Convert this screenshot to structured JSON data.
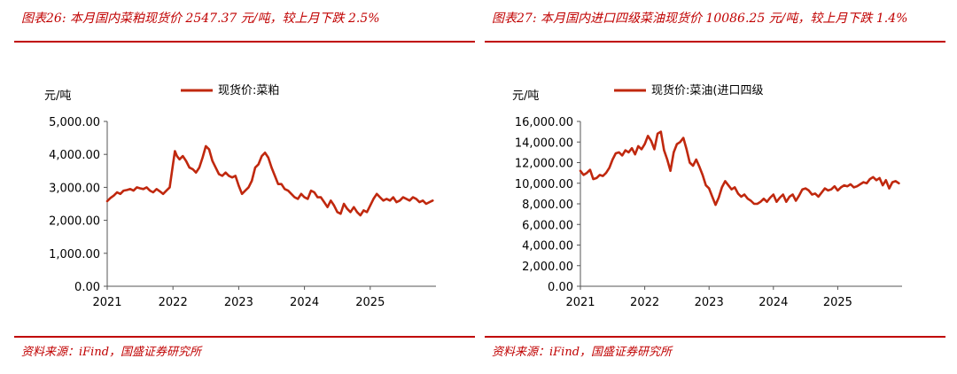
{
  "panels": [
    {
      "title": "图表26:  本月国内菜粕现货价 2547.37 元/吨，较上月下跌 2.5%",
      "source": "资料来源：iFind，国盛证券研究所"
    },
    {
      "title": "图表27:  本月国内进口四级菜油现货价  10086.25  元/吨，较上月下跌 1.4%",
      "source": "资料来源：iFind，国盛证券研究所"
    }
  ],
  "chart_data": [
    {
      "type": "line",
      "title": "",
      "unit_label": "元/吨",
      "legend": "现货价:菜粕",
      "legend_position": "top-center",
      "color": "#c0280e",
      "ylim": [
        0,
        5000
      ],
      "yticks": [
        0,
        1000,
        2000,
        3000,
        4000,
        5000
      ],
      "ytick_labels": [
        "0.00",
        "1,000.00",
        "2,000.00",
        "3,000.00",
        "4,000.00",
        "5,000.00"
      ],
      "xlim": [
        2021.0,
        2026.0
      ],
      "xticks": [
        2021,
        2022,
        2023,
        2024,
        2025
      ],
      "xtick_labels": [
        "2021",
        "2022",
        "2023",
        "2024",
        "2025"
      ],
      "series": [
        {
          "name": "现货价:菜粕",
          "x": [
            2021.0,
            2021.05,
            2021.1,
            2021.15,
            2021.2,
            2021.25,
            2021.3,
            2021.35,
            2021.4,
            2021.45,
            2021.5,
            2021.55,
            2021.6,
            2021.65,
            2021.7,
            2021.75,
            2021.8,
            2021.85,
            2021.9,
            2021.95,
            2022.0,
            2022.03,
            2022.06,
            2022.1,
            2022.15,
            2022.2,
            2022.25,
            2022.3,
            2022.35,
            2022.4,
            2022.45,
            2022.5,
            2022.55,
            2022.6,
            2022.65,
            2022.7,
            2022.75,
            2022.8,
            2022.85,
            2022.9,
            2022.95,
            2023.0,
            2023.05,
            2023.1,
            2023.15,
            2023.2,
            2023.25,
            2023.3,
            2023.35,
            2023.4,
            2023.45,
            2023.5,
            2023.55,
            2023.6,
            2023.65,
            2023.7,
            2023.75,
            2023.8,
            2023.85,
            2023.9,
            2023.95,
            2024.0,
            2024.05,
            2024.1,
            2024.15,
            2024.2,
            2024.25,
            2024.3,
            2024.35,
            2024.4,
            2024.45,
            2024.5,
            2024.55,
            2024.6,
            2024.65,
            2024.7,
            2024.75,
            2024.8,
            2024.85,
            2024.9,
            2024.95,
            2025.0,
            2025.05,
            2025.1,
            2025.15,
            2025.2,
            2025.25,
            2025.3,
            2025.35,
            2025.4,
            2025.45,
            2025.5,
            2025.55,
            2025.6,
            2025.65,
            2025.7,
            2025.75,
            2025.8,
            2025.85,
            2025.9,
            2025.95
          ],
          "values": [
            2580,
            2680,
            2750,
            2850,
            2800,
            2900,
            2920,
            2950,
            2900,
            3000,
            2970,
            2950,
            3000,
            2900,
            2850,
            2950,
            2880,
            2800,
            2900,
            3000,
            3700,
            4100,
            3950,
            3850,
            3950,
            3800,
            3600,
            3550,
            3450,
            3600,
            3900,
            4250,
            4150,
            3800,
            3600,
            3400,
            3350,
            3450,
            3350,
            3300,
            3350,
            3050,
            2800,
            2900,
            3000,
            3200,
            3600,
            3700,
            3950,
            4050,
            3900,
            3600,
            3350,
            3100,
            3100,
            2950,
            2900,
            2800,
            2700,
            2650,
            2800,
            2700,
            2650,
            2900,
            2850,
            2700,
            2700,
            2550,
            2400,
            2600,
            2450,
            2250,
            2200,
            2500,
            2350,
            2250,
            2400,
            2250,
            2150,
            2300,
            2250,
            2450,
            2650,
            2800,
            2700,
            2600,
            2650,
            2600,
            2700,
            2550,
            2600,
            2700,
            2650,
            2600,
            2700,
            2650,
            2550,
            2600,
            2500,
            2550,
            2600
          ]
        }
      ]
    },
    {
      "type": "line",
      "title": "",
      "unit_label": "元/吨",
      "legend": "现货价:菜油(进口四级",
      "legend_position": "top-center",
      "color": "#c0280e",
      "ylim": [
        0,
        16000
      ],
      "yticks": [
        0,
        2000,
        4000,
        6000,
        8000,
        10000,
        12000,
        14000,
        16000
      ],
      "ytick_labels": [
        "0.00",
        "2,000.00",
        "4,000.00",
        "6,000.00",
        "8,000.00",
        "10,000.00",
        "12,000.00",
        "14,000.00",
        "16,000.00"
      ],
      "xlim": [
        2021.0,
        2026.0
      ],
      "xticks": [
        2021,
        2022,
        2023,
        2024,
        2025
      ],
      "xtick_labels": [
        "2021",
        "2022",
        "2023",
        "2024",
        "2025"
      ],
      "series": [
        {
          "name": "现货价:菜油(进口四级",
          "x": [
            2021.0,
            2021.05,
            2021.1,
            2021.15,
            2021.2,
            2021.25,
            2021.3,
            2021.35,
            2021.4,
            2021.45,
            2021.5,
            2021.55,
            2021.6,
            2021.65,
            2021.7,
            2021.75,
            2021.8,
            2021.85,
            2021.9,
            2021.95,
            2022.0,
            2022.05,
            2022.1,
            2022.15,
            2022.2,
            2022.25,
            2022.3,
            2022.35,
            2022.4,
            2022.45,
            2022.5,
            2022.55,
            2022.6,
            2022.65,
            2022.7,
            2022.75,
            2022.8,
            2022.85,
            2022.9,
            2022.95,
            2023.0,
            2023.05,
            2023.1,
            2023.15,
            2023.2,
            2023.25,
            2023.3,
            2023.35,
            2023.4,
            2023.45,
            2023.5,
            2023.55,
            2023.6,
            2023.65,
            2023.7,
            2023.75,
            2023.8,
            2023.85,
            2023.9,
            2023.95,
            2024.0,
            2024.05,
            2024.1,
            2024.15,
            2024.2,
            2024.25,
            2024.3,
            2024.35,
            2024.4,
            2024.45,
            2024.5,
            2024.55,
            2024.6,
            2024.65,
            2024.7,
            2024.75,
            2024.8,
            2024.85,
            2024.9,
            2024.95,
            2025.0,
            2025.05,
            2025.1,
            2025.15,
            2025.2,
            2025.25,
            2025.3,
            2025.35,
            2025.4,
            2025.45,
            2025.5,
            2025.55,
            2025.6,
            2025.65,
            2025.7,
            2025.75,
            2025.8,
            2025.85,
            2025.9,
            2025.95
          ],
          "values": [
            11200,
            10800,
            11000,
            11300,
            10400,
            10500,
            10800,
            10700,
            11000,
            11500,
            12300,
            12900,
            13000,
            12700,
            13200,
            13000,
            13400,
            12800,
            13600,
            13300,
            13800,
            14600,
            14100,
            13300,
            14800,
            15000,
            13200,
            12300,
            11200,
            13000,
            13800,
            14000,
            14400,
            13300,
            12000,
            11700,
            12300,
            11600,
            10800,
            9800,
            9500,
            8700,
            7900,
            8600,
            9600,
            10200,
            9800,
            9400,
            9600,
            9000,
            8700,
            8900,
            8500,
            8300,
            8000,
            8000,
            8200,
            8500,
            8200,
            8600,
            8900,
            8200,
            8600,
            8900,
            8200,
            8700,
            8900,
            8300,
            8800,
            9400,
            9500,
            9300,
            8900,
            9000,
            8700,
            9100,
            9500,
            9300,
            9400,
            9700,
            9300,
            9600,
            9800,
            9700,
            9900,
            9600,
            9700,
            9900,
            10100,
            10000,
            10400,
            10600,
            10300,
            10500,
            9800,
            10300,
            9500,
            10100,
            10200,
            10000
          ]
        }
      ]
    }
  ]
}
